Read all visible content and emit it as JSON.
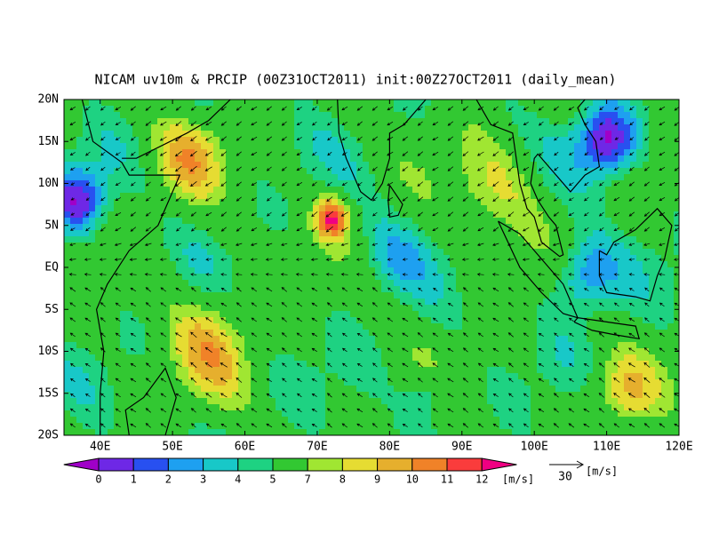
{
  "map": {
    "title": "NICAM uv10m & PRCIP (00Z31OCT2011) init:00Z27OCT2011 (daily_mean)",
    "xlim": [
      35,
      120
    ],
    "ylim": [
      -20,
      20
    ],
    "xticks": [
      {
        "value": 40,
        "label": "40E"
      },
      {
        "value": 50,
        "label": "50E"
      },
      {
        "value": 60,
        "label": "60E"
      },
      {
        "value": 70,
        "label": "70E"
      },
      {
        "value": 80,
        "label": "80E"
      },
      {
        "value": 90,
        "label": "90E"
      },
      {
        "value": 100,
        "label": "100E"
      },
      {
        "value": 110,
        "label": "110E"
      },
      {
        "value": 120,
        "label": "120E"
      }
    ],
    "yticks": [
      {
        "value": 20,
        "label": "20N"
      },
      {
        "value": 15,
        "label": "15N"
      },
      {
        "value": 10,
        "label": "10N"
      },
      {
        "value": 5,
        "label": "5N"
      },
      {
        "value": 0,
        "label": "EQ"
      },
      {
        "value": -5,
        "label": "5S"
      },
      {
        "value": -10,
        "label": "10S"
      },
      {
        "value": -15,
        "label": "15S"
      },
      {
        "value": -20,
        "label": "20S"
      }
    ],
    "colorbar": {
      "levels": [
        0,
        1,
        2,
        3,
        4,
        5,
        7,
        8,
        9,
        10,
        11,
        12
      ],
      "colors": [
        "#a000c8",
        "#6e28e6",
        "#2850f0",
        "#1ea0f0",
        "#18c8c8",
        "#1ed282",
        "#32c832",
        "#a0e632",
        "#e6dc32",
        "#e6af2d",
        "#f08228",
        "#fa3c3c",
        "#f00082"
      ],
      "unit": "[m/s]"
    },
    "reference_vector": {
      "label": "30",
      "unit": "[m/s]"
    }
  }
}
